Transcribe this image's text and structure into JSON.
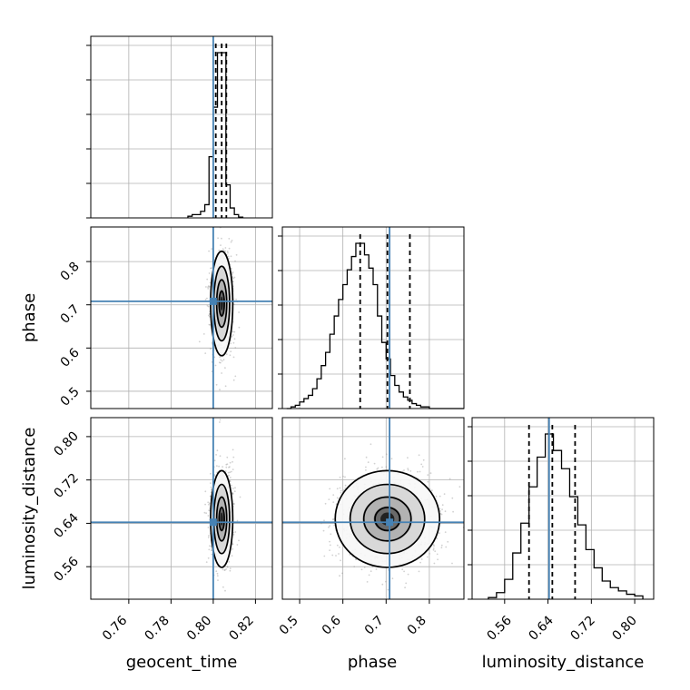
{
  "chart_data": {
    "type": "corner",
    "parameters": [
      "geocent_time",
      "phase",
      "luminosity_distance"
    ],
    "axis_labels": {
      "geocent_time": "geocent_time",
      "phase": "phase",
      "luminosity_distance": "luminosity_distance"
    },
    "ranges": {
      "geocent_time": [
        0.742,
        0.828
      ],
      "phase": [
        0.46,
        0.88
      ],
      "luminosity_distance": [
        0.5,
        0.835
      ]
    },
    "ticks": {
      "geocent_time": [
        0.76,
        0.78,
        0.8,
        0.82
      ],
      "phase": [
        0.5,
        0.6,
        0.7,
        0.8
      ],
      "luminosity_distance": [
        0.56,
        0.64,
        0.72,
        0.8
      ]
    },
    "tick_labels": {
      "geocent_time": [
        "0.76",
        "0.78",
        "0.80",
        "0.82"
      ],
      "phase": [
        "0.5",
        "0.6",
        "0.7",
        "0.8"
      ],
      "luminosity_distance": [
        "0.56",
        "0.64",
        "0.72",
        "0.80"
      ]
    },
    "truths": {
      "geocent_time": 0.8,
      "phase": 0.708,
      "luminosity_distance": 0.642
    },
    "quantiles": {
      "geocent_time": [
        0.8012,
        0.804,
        0.8062
      ],
      "phase": [
        0.64,
        0.703,
        0.755
      ],
      "luminosity_distance": [
        0.605,
        0.648,
        0.69
      ]
    },
    "histograms": {
      "geocent_time": {
        "edges": [
          0.788,
          0.79,
          0.792,
          0.794,
          0.796,
          0.798,
          0.8,
          0.802,
          0.804,
          0.806,
          0.808,
          0.81,
          0.812,
          0.814
        ],
        "values": [
          0.01,
          0.02,
          0.02,
          0.04,
          0.08,
          0.37,
          0.67,
          1.0,
          1.0,
          0.2,
          0.06,
          0.02,
          0.005
        ]
      },
      "phase": {
        "edges": [
          0.47,
          0.48,
          0.49,
          0.5,
          0.51,
          0.52,
          0.53,
          0.54,
          0.55,
          0.56,
          0.57,
          0.58,
          0.59,
          0.6,
          0.61,
          0.62,
          0.63,
          0.64,
          0.65,
          0.66,
          0.67,
          0.68,
          0.69,
          0.7,
          0.71,
          0.72,
          0.73,
          0.74,
          0.75,
          0.76,
          0.77,
          0.78,
          0.79,
          0.8,
          0.81,
          0.82,
          0.83,
          0.84,
          0.85,
          0.86,
          0.87,
          0.88
        ],
        "values": [
          0.0,
          0.01,
          0.02,
          0.04,
          0.06,
          0.08,
          0.12,
          0.18,
          0.26,
          0.34,
          0.45,
          0.56,
          0.66,
          0.75,
          0.84,
          0.92,
          1.0,
          1.0,
          0.93,
          0.85,
          0.75,
          0.56,
          0.4,
          0.3,
          0.2,
          0.14,
          0.1,
          0.07,
          0.05,
          0.03,
          0.02,
          0.01,
          0.01,
          0.0,
          0.0,
          0.0,
          0.0,
          0.0,
          0.0,
          0.0,
          0.0
        ]
      },
      "luminosity_distance": {
        "edges": [
          0.53,
          0.545,
          0.56,
          0.575,
          0.59,
          0.605,
          0.62,
          0.635,
          0.65,
          0.665,
          0.68,
          0.695,
          0.71,
          0.725,
          0.74,
          0.755,
          0.77,
          0.785,
          0.8,
          0.815
        ],
        "values": [
          0.01,
          0.04,
          0.12,
          0.28,
          0.46,
          0.68,
          0.86,
          1.0,
          0.9,
          0.79,
          0.62,
          0.45,
          0.3,
          0.19,
          0.11,
          0.07,
          0.05,
          0.03,
          0.02
        ]
      }
    },
    "grid": true,
    "colors": {
      "truth": "#4682b4",
      "histogram": "#000000",
      "quantile": "#000000",
      "scatter": "#9a9a9a",
      "grid": "#b0b0b0",
      "contour_fill_low": "#f7f7f7",
      "contour_fill_mid": "#b0b0b0",
      "contour_fill_high": "#222222"
    }
  }
}
